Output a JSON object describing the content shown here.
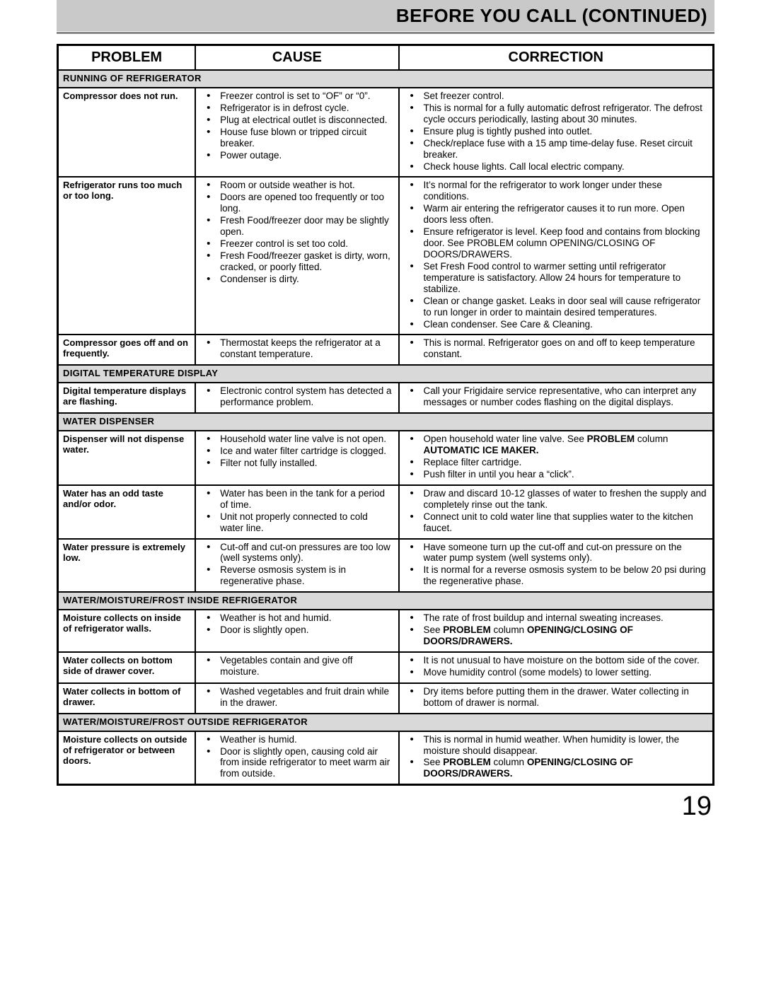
{
  "banner": {
    "title": "BEFORE YOU CALL (CONTINUED)"
  },
  "columns": {
    "problem": "PROBLEM",
    "cause": "CAUSE",
    "correction": "CORRECTION"
  },
  "page_number": "19",
  "sections": [
    {
      "heading": "RUNNING OF REFRIGERATOR",
      "rows": [
        {
          "problem": "Compressor does not run.",
          "causes": [
            "Freezer control is set to “OF” or “0”.",
            "Refrigerator is in defrost cycle.",
            "Plug at electrical outlet is disconnected.",
            "House fuse blown or tripped circuit breaker.",
            "Power outage."
          ],
          "corrections": [
            "Set freezer control.",
            "This is normal for a fully automatic defrost refrigerator. The defrost cycle occurs periodically, lasting about 30 minutes.",
            "Ensure plug is tightly pushed into outlet.",
            "Check/replace fuse with a 15 amp time-delay fuse.  Reset circuit breaker.",
            "Check house lights.  Call local electric company."
          ]
        },
        {
          "problem": "Refrigerator runs too much or too long.",
          "causes": [
            "Room or outside weather is hot.",
            "Doors are opened too frequently or too long.",
            "Fresh Food/freezer door may be slightly open.",
            "Freezer control is set too cold.",
            "Fresh Food/freezer gasket is dirty, worn, cracked, or poorly fitted.",
            "Condenser is dirty."
          ],
          "corrections": [
            "It’s normal for the refrigerator to work longer under these conditions.",
            "Warm air entering the refrigerator causes it to run more. Open doors less often.",
            "Ensure refrigerator is level.  Keep food and contains from blocking door.  See PROBLEM column OPENING/CLOSING OF DOORS/DRAWERS.",
            "Set Fresh Food control to warmer setting until refrigerator temperature is satisfactory.  Allow 24 hours for temperature to stabilize.",
            "Clean or change gasket.  Leaks in door seal will cause refrigerator to run longer in order to maintain desired temperatures.",
            "Clean condenser.  See Care & Cleaning."
          ]
        },
        {
          "problem": "Compressor goes off and on frequently.",
          "causes": [
            "Thermostat keeps the refrigerator at a constant temperature."
          ],
          "corrections": [
            "This is normal.  Refrigerator goes on and off to keep temperature constant."
          ]
        }
      ]
    },
    {
      "heading": "DIGITAL TEMPERATURE DISPLAY",
      "rows": [
        {
          "problem": "Digital temperature displays are flashing.",
          "causes": [
            "Electronic control system has detected a performance problem."
          ],
          "corrections": [
            "Call your Frigidaire service representative, who can interpret any messages or number codes flashing on the digital displays."
          ]
        }
      ]
    },
    {
      "heading": "WATER DISPENSER",
      "rows": [
        {
          "problem": "Dispenser will not dispense water.",
          "causes": [
            "Household water line valve is not open.",
            "Ice and water filter cartridge is clogged.",
            "Filter not fully installed."
          ],
          "corrections_html": [
            "Open household water line valve.  See <span class=\"b\">PROBLEM</span> column <span class=\"b\">AUTOMATIC ICE MAKER.</span>",
            "Replace filter cartridge.",
            "Push filter in until you hear a “click”."
          ]
        },
        {
          "problem": "Water has an odd taste and/or odor.",
          "causes": [
            "Water has been in the tank for a period of time.",
            "Unit not properly connected to cold water line."
          ],
          "corrections": [
            "Draw and discard 10-12 glasses of water to freshen the supply and completely rinse out the tank.",
            "Connect unit to cold water line that supplies water to the kitchen faucet."
          ]
        },
        {
          "problem": "Water pressure is extremely low.",
          "causes": [
            "Cut-off and cut-on pressures are too low (well systems only).",
            "Reverse osmosis system is in regenerative phase."
          ],
          "corrections": [
            "Have someone turn up the cut-off and cut-on pressure on the water pump system (well systems only).",
            "It is normal for a reverse osmosis system to be below 20 psi during the regenerative phase."
          ]
        }
      ]
    },
    {
      "heading": "WATER/MOISTURE/FROST INSIDE REFRIGERATOR",
      "rows": [
        {
          "problem": "Moisture collects on inside of refrigerator walls.",
          "causes": [
            "Weather is hot and humid.",
            "Door is slightly open."
          ],
          "corrections_html": [
            "The rate of frost buildup and internal sweating increases.",
            "See <span class=\"b\">PROBLEM</span> column <span class=\"b\">OPENING/CLOSING OF DOORS/DRAWERS.</span>"
          ]
        },
        {
          "problem": "Water collects on bottom side of drawer cover.",
          "causes": [
            "Vegetables contain and give off moisture."
          ],
          "corrections": [
            "It is not unusual to have moisture on the bottom side of the cover.",
            "Move humidity control (some models) to lower setting."
          ]
        },
        {
          "problem": "Water collects in bottom of drawer.",
          "causes": [
            "Washed vegetables and fruit drain while in the drawer."
          ],
          "corrections": [
            "Dry items before putting them in the drawer.  Water collecting in bottom of drawer is normal."
          ]
        }
      ]
    },
    {
      "heading": "WATER/MOISTURE/FROST OUTSIDE REFRIGERATOR",
      "rows": [
        {
          "problem": "Moisture collects on outside of refrigerator or between doors.",
          "causes": [
            "Weather is humid.",
            "Door is slightly open, causing cold air from inside refrigerator to meet warm air from outside."
          ],
          "corrections_html": [
            "This is normal in humid weather.  When humidity is lower, the moisture should disappear.",
            "See <span class=\"b\">PROBLEM</span> column <span class=\"b\">OPENING/CLOSING OF DOORS/DRAWERS.</span>"
          ]
        }
      ]
    }
  ]
}
